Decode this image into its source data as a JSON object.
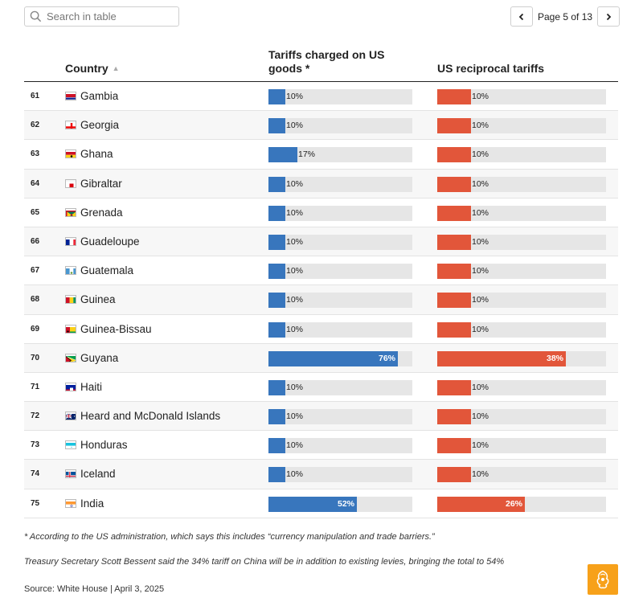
{
  "search": {
    "placeholder": "Search in table"
  },
  "pager": {
    "text": "Page 5 of 13"
  },
  "header": {
    "country": "Country",
    "tariffs_charged": "Tariffs charged on US goods *",
    "reciprocal": "US reciprocal tariffs"
  },
  "colors": {
    "charged_bar": "#3876bd",
    "reciprocal_bar": "#e2563a",
    "track": "#e6e6e6",
    "logo": "#f7a11a"
  },
  "rows": [
    {
      "rank": "61",
      "country": "Gambia",
      "flag": "gambia-flag",
      "charged": 10,
      "charged_label": "10%",
      "reciprocal": 10,
      "reciprocal_label": "10%"
    },
    {
      "rank": "62",
      "country": "Georgia",
      "flag": "georgia-flag",
      "charged": 10,
      "charged_label": "10%",
      "reciprocal": 10,
      "reciprocal_label": "10%"
    },
    {
      "rank": "63",
      "country": "Ghana",
      "flag": "ghana-flag",
      "charged": 17,
      "charged_label": "17%",
      "reciprocal": 10,
      "reciprocal_label": "10%"
    },
    {
      "rank": "64",
      "country": "Gibraltar",
      "flag": "gibraltar-flag",
      "charged": 10,
      "charged_label": "10%",
      "reciprocal": 10,
      "reciprocal_label": "10%"
    },
    {
      "rank": "65",
      "country": "Grenada",
      "flag": "grenada-flag",
      "charged": 10,
      "charged_label": "10%",
      "reciprocal": 10,
      "reciprocal_label": "10%"
    },
    {
      "rank": "66",
      "country": "Guadeloupe",
      "flag": "guadeloupe-flag",
      "charged": 10,
      "charged_label": "10%",
      "reciprocal": 10,
      "reciprocal_label": "10%"
    },
    {
      "rank": "67",
      "country": "Guatemala",
      "flag": "guatemala-flag",
      "charged": 10,
      "charged_label": "10%",
      "reciprocal": 10,
      "reciprocal_label": "10%"
    },
    {
      "rank": "68",
      "country": "Guinea",
      "flag": "guinea-flag",
      "charged": 10,
      "charged_label": "10%",
      "reciprocal": 10,
      "reciprocal_label": "10%"
    },
    {
      "rank": "69",
      "country": "Guinea-Bissau",
      "flag": "guinea-bissau-flag",
      "charged": 10,
      "charged_label": "10%",
      "reciprocal": 10,
      "reciprocal_label": "10%"
    },
    {
      "rank": "70",
      "country": "Guyana",
      "flag": "guyana-flag",
      "charged": 76,
      "charged_label": "76%",
      "reciprocal": 38,
      "reciprocal_label": "38%"
    },
    {
      "rank": "71",
      "country": "Haiti",
      "flag": "haiti-flag",
      "charged": 10,
      "charged_label": "10%",
      "reciprocal": 10,
      "reciprocal_label": "10%"
    },
    {
      "rank": "72",
      "country": "Heard and McDonald Islands",
      "flag": "australia-flag",
      "charged": 10,
      "charged_label": "10%",
      "reciprocal": 10,
      "reciprocal_label": "10%"
    },
    {
      "rank": "73",
      "country": "Honduras",
      "flag": "honduras-flag",
      "charged": 10,
      "charged_label": "10%",
      "reciprocal": 10,
      "reciprocal_label": "10%"
    },
    {
      "rank": "74",
      "country": "Iceland",
      "flag": "iceland-flag",
      "charged": 10,
      "charged_label": "10%",
      "reciprocal": 10,
      "reciprocal_label": "10%"
    },
    {
      "rank": "75",
      "country": "India",
      "flag": "india-flag",
      "charged": 52,
      "charged_label": "52%",
      "reciprocal": 26,
      "reciprocal_label": "26%"
    }
  ],
  "footnotes": {
    "note1": "* According to the US administration, which says this includes “currency manipulation and trade barriers.”",
    "note2": "Treasury Secretary Scott Bessent said the 34% tariff on China will be in addition to existing levies, bringing the total to 54%",
    "source": "Source: White House | April 3, 2025"
  },
  "logo": {
    "icon": "al-jazeera-logo-icon"
  }
}
